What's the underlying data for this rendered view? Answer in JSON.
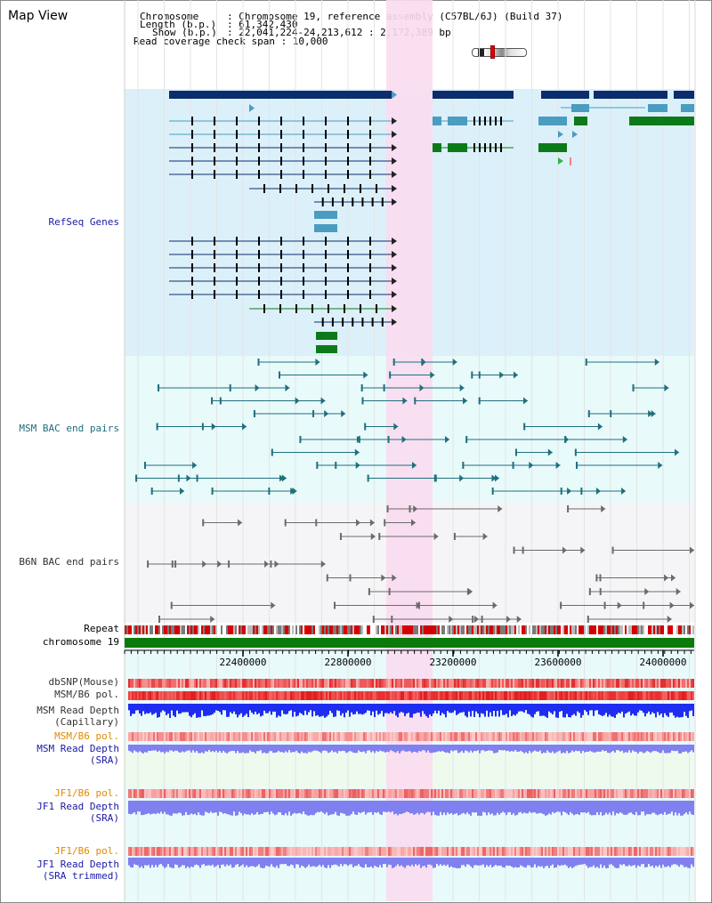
{
  "title": "Map View",
  "info": {
    "chromosome_label": "Chromosome",
    "chromosome_value": ": Chromosome 19, reference assembly (C57BL/6J) (Build 37)",
    "length_label": "Length (b.p.)",
    "length_value": ": 61,342,430",
    "show_label": "Show (b.p.)",
    "show_value": ": 22,041,224-24,213,612 : 2,172,389 bp",
    "coverage": "Read coverage check span : 10,000"
  },
  "tracks": {
    "refseq": "RefSeq Genes",
    "msm_bac": "MSM BAC end pairs",
    "b6n_bac": "B6N BAC end pairs",
    "repeat": "Repeat",
    "chromosome": "chromosome 19",
    "dbsnp": "dbSNP(Mouse)",
    "msm_b6_pol": "MSM/B6 pol.",
    "msm_depth_1": "MSM Read Depth",
    "msm_depth_2": "(Capillary)",
    "msm_b6_pol_sra": "MSM/B6 pol.",
    "msm_sra_1": "MSM Read Depth",
    "msm_sra_2": "(SRA)",
    "jf1_pol": "JF1/B6 pol.",
    "jf1_depth_1": "JF1 Read Depth",
    "jf1_depth_2": "(SRA)",
    "jf1_pol_2": "JF1/B6 pol.",
    "jf1_trim_1": "JF1 Read Depth",
    "jf1_trim_2": "(SRA trimmed)"
  },
  "axis": {
    "ticks": [
      "22400000",
      "22800000",
      "23200000",
      "23600000",
      "24000000"
    ]
  },
  "colors": {
    "refseq_bg": "#dcf0fa",
    "msm_bg": "#e8fafa",
    "b6n_bg": "#f5f5f7",
    "highlight": "#fadcf0",
    "navy": "#0b2d6b",
    "lightblue": "#4a9cc0",
    "green": "#0d7a1a",
    "chrom_bar": "#0a7a0a",
    "msm_depth": "#1e2df0",
    "sra_depth": "#8080f0"
  }
}
